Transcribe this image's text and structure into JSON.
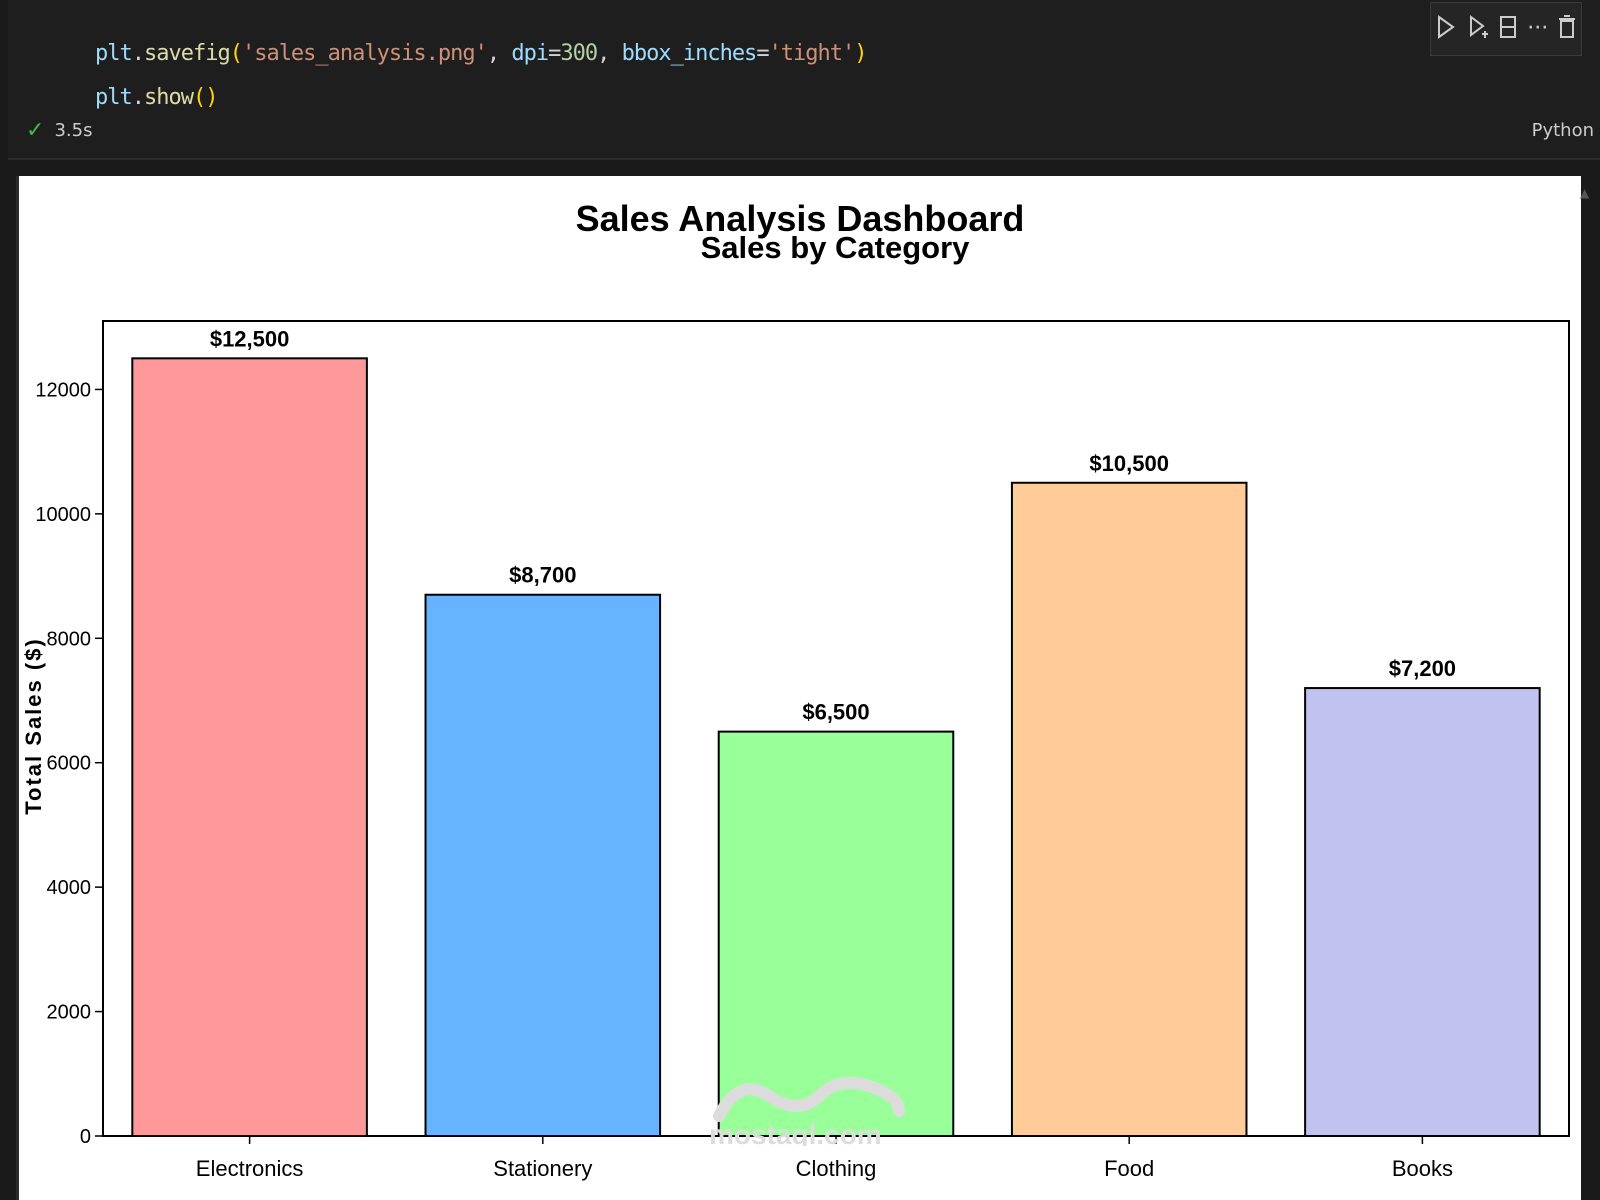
{
  "code": {
    "line1": {
      "obj": "plt",
      "fn": "savefig",
      "filename": "'sales_analysis.png'",
      "param_dpi": "dpi",
      "dpi_value": "300",
      "param_bbox": "bbox_inches",
      "bbox_value": "'tight'"
    },
    "line2": {
      "obj": "plt",
      "fn": "show"
    }
  },
  "status": {
    "check_icon": "check-icon",
    "duration": "3.5s",
    "language": "Python"
  },
  "toolbar": {
    "icons": [
      "run-above-icon",
      "run-below-icon",
      "split-cell-icon",
      "more-icon",
      "delete-icon"
    ]
  },
  "chart_data": {
    "type": "bar",
    "suptitle": "Sales Analysis Dashboard",
    "title": "Sales by Category",
    "xlabel": "",
    "ylabel": "Total Sales ($)",
    "categories": [
      "Electronics",
      "Stationery",
      "Clothing",
      "Food",
      "Books"
    ],
    "values": [
      12500,
      8700,
      6500,
      10500,
      7200
    ],
    "value_labels": [
      "$12,500",
      "$8,700",
      "$6,500",
      "$10,500",
      "$7,200"
    ],
    "colors": [
      "#ff9999",
      "#66b3ff",
      "#99ff99",
      "#ffcc99",
      "#c2c2f0"
    ],
    "ylim": [
      0,
      13100
    ],
    "yticks": [
      0,
      2000,
      4000,
      6000,
      8000,
      10000,
      12000
    ],
    "grid": false
  }
}
